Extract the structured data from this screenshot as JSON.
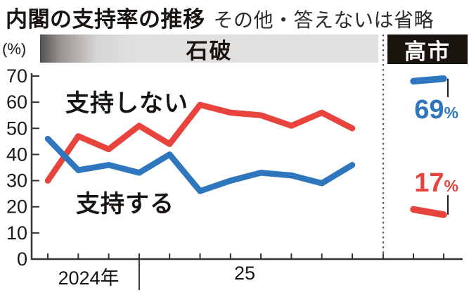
{
  "header": {
    "title": "内閣の支持率の推移",
    "subtitle": "その他・答えないは省略"
  },
  "axis": {
    "unit": "(%)",
    "year_left": "2024年",
    "year_right": "25"
  },
  "periods": {
    "left": "石破",
    "right": "高市"
  },
  "series_labels": {
    "disapprove": "支持しない",
    "approve": "支持する"
  },
  "callouts": {
    "approve": {
      "value": "69",
      "unit": "%"
    },
    "disapprove": {
      "value": "17",
      "unit": "%"
    }
  },
  "colors": {
    "approve": "#2e77be",
    "disapprove": "#e8433c",
    "axis": "#333333",
    "text": "#1a1a1a",
    "dotted": "#555555",
    "leader": "#222222",
    "band_light": "#e2e0df",
    "band_dark": "#55504d",
    "box_bg": "#1a140e"
  },
  "chart_data": {
    "type": "line",
    "title": "内閣の支持率の推移",
    "note": "その他・答えないは省略",
    "ylabel": "(%)",
    "ylim": [
      0,
      70
    ],
    "yticks": [
      0,
      10,
      20,
      30,
      40,
      50,
      60,
      70
    ],
    "x_year_labels": [
      "2024年",
      "25"
    ],
    "grid": false,
    "legend_position": "inline",
    "sections": [
      {
        "period": "石破",
        "series": [
          {
            "name": "支持する",
            "color_key": "approve",
            "values": [
              46,
              34,
              36,
              33,
              40,
              26,
              30,
              33,
              32,
              29,
              36
            ]
          },
          {
            "name": "支持しない",
            "color_key": "disapprove",
            "values": [
              30,
              47,
              42,
              51,
              44,
              59,
              56,
              55,
              51,
              56,
              50
            ]
          }
        ]
      },
      {
        "period": "高市",
        "series": [
          {
            "name": "支持する",
            "color_key": "approve",
            "values": [
              68,
              69
            ],
            "end_label": "69%"
          },
          {
            "name": "支持しない",
            "color_key": "disapprove",
            "values": [
              19,
              17
            ],
            "end_label": "17%"
          }
        ]
      }
    ]
  }
}
